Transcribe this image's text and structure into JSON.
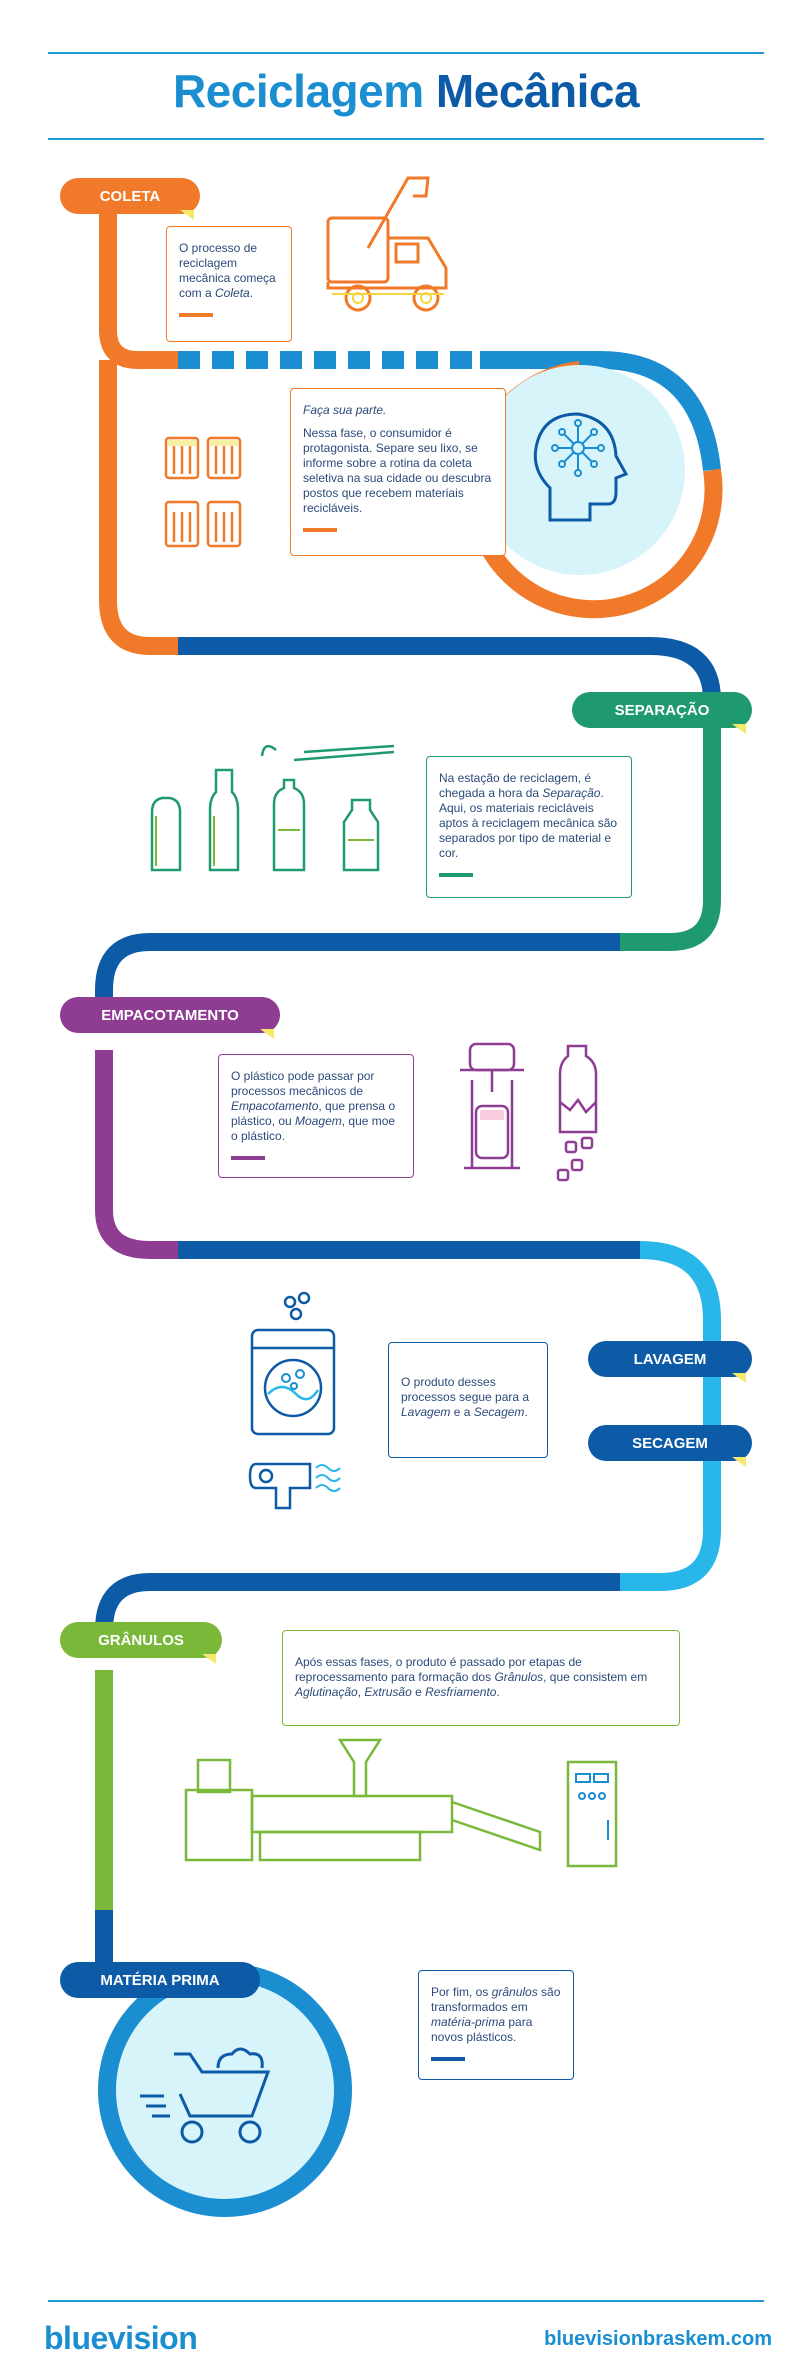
{
  "header": {
    "title_part1": "Reciclagem",
    "title_part2": "Mecânica"
  },
  "steps": {
    "coleta": {
      "label": "COLETA",
      "text_before": "O processo de reciclagem mecânica começa com a ",
      "text_em": "Coleta",
      "text_after": "."
    },
    "parte": {
      "heading": "Faça sua parte.",
      "text": "Nessa fase, o consumidor é protagonista. Separe seu lixo, se informe sobre a rotina da coleta seletiva na sua cidade ou descubra postos que recebem materiais recicláveis."
    },
    "separacao": {
      "label": "SEPARAÇÃO",
      "text_before": "Na estação de reciclagem, é chegada a hora da ",
      "text_em": "Separação",
      "text_after": ". Aqui, os materiais recicláveis aptos à reciclagem mecânica são separados por tipo de material e cor."
    },
    "empacotamento": {
      "label": "EMPACOTAMENTO",
      "text_a": "O plástico pode passar por processos mecânicos de ",
      "text_em1": "Empacotamento",
      "text_b": ", que prensa o plástico, ou ",
      "text_em2": "Moagem",
      "text_c": ", que moe o plástico."
    },
    "lavagem": {
      "label": "LAVAGEM"
    },
    "secagem": {
      "label": "SECAGEM",
      "text_a": "O produto desses processos segue para a ",
      "text_em1": "Lavagem",
      "text_b": " e a ",
      "text_em2": "Secagem",
      "text_c": "."
    },
    "granulos": {
      "label": "GRÂNULOS",
      "text_a": "Após essas fases, o produto é passado por etapas de reprocessamento para formação dos ",
      "text_em1": "Grânulos",
      "text_b": ", que consistem em ",
      "text_em2": "Aglutinação",
      "text_c": ", ",
      "text_em3": "Extrusão",
      "text_d": " e ",
      "text_em4": "Resfriamento",
      "text_e": "."
    },
    "materia": {
      "label": "MATÉRIA PRIMA",
      "text_a": "Por fim, os ",
      "text_em1": "grânulos",
      "text_b": " são transformados em ",
      "text_em2": "matéria-prima",
      "text_c": " para novos plásticos."
    }
  },
  "footer": {
    "brand": "bluevision",
    "url": "bluevisionbraskem.com"
  },
  "colors": {
    "orange": "#f07a2a",
    "blue": "#1a8ed0",
    "navy": "#0d5aa7",
    "green": "#1f9a6e",
    "purple": "#8e3d93",
    "cyan": "#29b6e8",
    "lime": "#7ab83a",
    "yellow": "#f5e86b"
  },
  "icons": [
    "truck-icon",
    "trash-bins-icon",
    "head-network-icon",
    "bottles-icon",
    "press-icon",
    "grinder-icon",
    "washer-icon",
    "dryer-icon",
    "extruder-icon",
    "wheelbarrow-icon"
  ]
}
